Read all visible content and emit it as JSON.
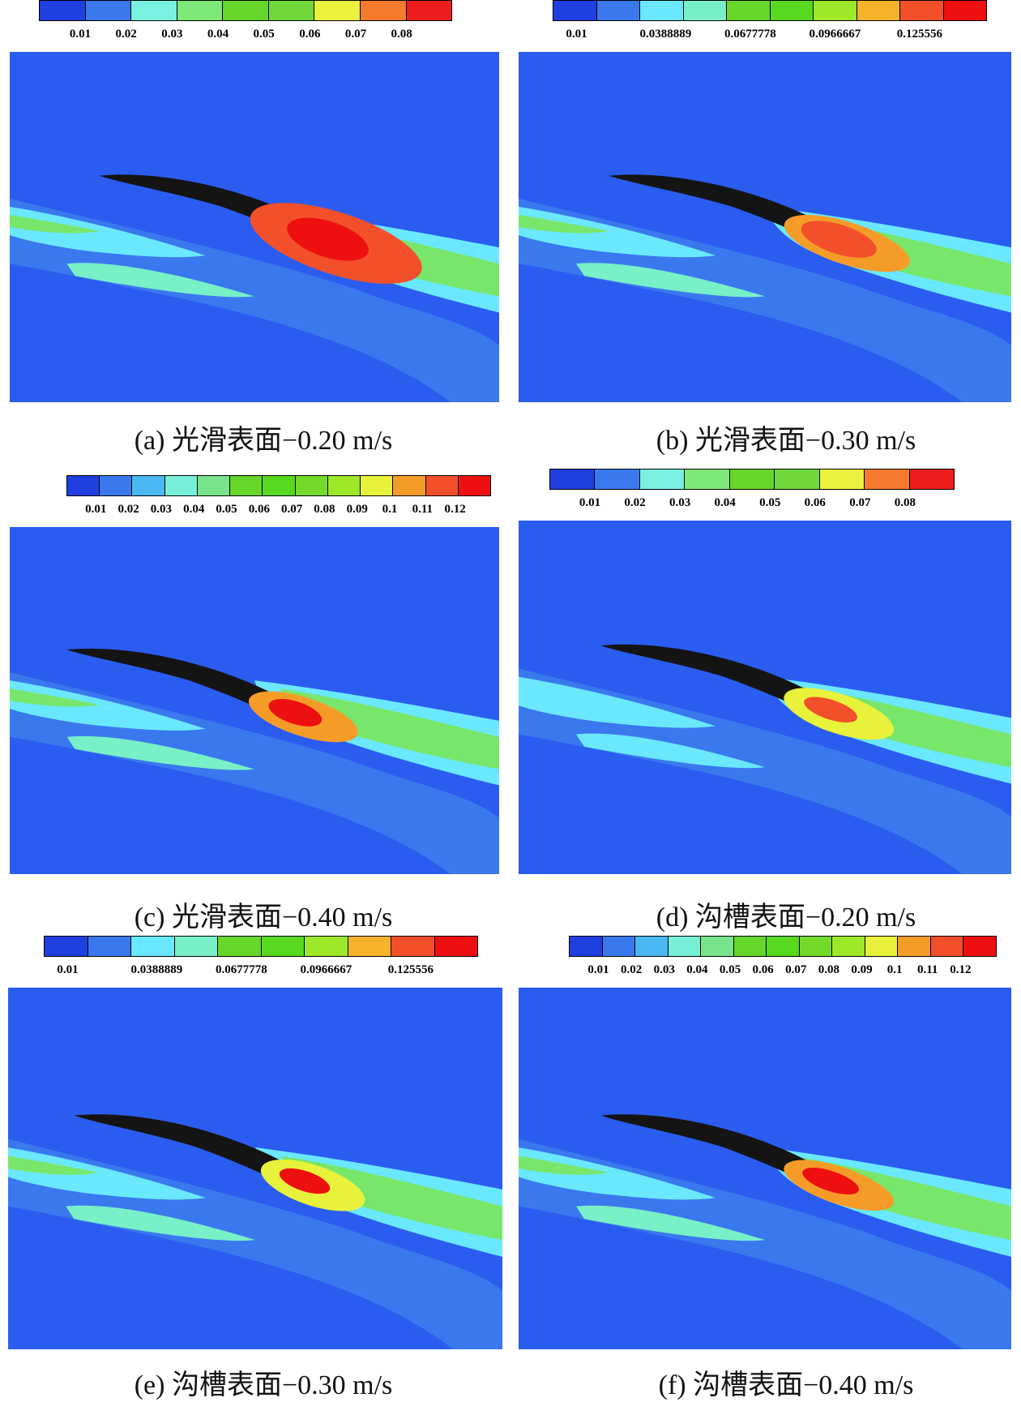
{
  "colors": {
    "c01": "#1f3fe0",
    "c02": "#3a78ee",
    "c03": "#6ae8ff",
    "c04": "#78f0c8",
    "c05": "#78e66a",
    "c06": "#66d62a",
    "c07": "#58d81e",
    "c08": "#9ee82a",
    "c09": "#e8f23a",
    "c10": "#f59c28",
    "c11": "#f2502a",
    "c12": "#ee1010",
    "background": "#2b5cf0",
    "blade": "#141414"
  },
  "panels": [
    {
      "id": "a",
      "caption": "(a) 光滑表面−0.20 m/s",
      "colorbar": {
        "colors": [
          "#1f3fe0",
          "#3a78ee",
          "#7af0e0",
          "#7ee878",
          "#66d62a",
          "#70d83a",
          "#eaf23e",
          "#f57a2c",
          "#ee1c1c"
        ],
        "labels": [
          "0.01",
          "0.02",
          "0.03",
          "0.04",
          "0.05",
          "0.06",
          "0.07",
          "0.08"
        ]
      }
    },
    {
      "id": "b",
      "caption": "(b) 光滑表面−0.30 m/s",
      "colorbar": {
        "colors": [
          "#1f3fe0",
          "#3a78ee",
          "#6ae8ff",
          "#78f0c8",
          "#66d62a",
          "#58d81e",
          "#9ee82a",
          "#f5b22a",
          "#f2502a",
          "#ee1010"
        ],
        "labels": [
          "0.01",
          "0.0388889",
          "0.0677778",
          "0.0966667",
          "0.125556"
        ]
      }
    },
    {
      "id": "c",
      "caption": "(c) 光滑表面−0.40 m/s",
      "colorbar": {
        "colors": [
          "#1f3fe0",
          "#3a78ee",
          "#4ab8f2",
          "#78f0d8",
          "#78e48c",
          "#66d62a",
          "#58d81e",
          "#74da2a",
          "#9ee82a",
          "#e8f23a",
          "#f59c28",
          "#f2502a",
          "#ee1010"
        ],
        "labels": [
          "0.01",
          "0.02",
          "0.03",
          "0.04",
          "0.05",
          "0.06",
          "0.07",
          "0.08",
          "0.09",
          "0.1",
          "0.11",
          "0.12"
        ]
      }
    },
    {
      "id": "d",
      "caption": "(d) 沟槽表面−0.20 m/s",
      "colorbar": {
        "colors": [
          "#1f3fe0",
          "#3a78ee",
          "#7af0e0",
          "#7ee878",
          "#66d62a",
          "#70d83a",
          "#eaf23e",
          "#f57a2c",
          "#ee1c1c"
        ],
        "labels": [
          "0.01",
          "0.02",
          "0.03",
          "0.04",
          "0.05",
          "0.06",
          "0.07",
          "0.08"
        ]
      }
    },
    {
      "id": "e",
      "caption": "(e) 沟槽表面−0.30 m/s",
      "colorbar": {
        "colors": [
          "#1f3fe0",
          "#3a78ee",
          "#6ae8ff",
          "#78f0c8",
          "#66d62a",
          "#58d81e",
          "#9ee82a",
          "#f5b22a",
          "#f2502a",
          "#ee1010"
        ],
        "labels": [
          "0.01",
          "0.0388889",
          "0.0677778",
          "0.0966667",
          "0.125556"
        ]
      }
    },
    {
      "id": "f",
      "caption": "(f) 沟槽表面−0.40 m/s",
      "colorbar": {
        "colors": [
          "#1f3fe0",
          "#3a78ee",
          "#4ab8f2",
          "#78f0d8",
          "#78e48c",
          "#66d62a",
          "#58d81e",
          "#74da2a",
          "#9ee82a",
          "#e8f23a",
          "#f59c28",
          "#f2502a",
          "#ee1010"
        ],
        "labels": [
          "0.01",
          "0.02",
          "0.03",
          "0.04",
          "0.05",
          "0.06",
          "0.07",
          "0.08",
          "0.09",
          "0.1",
          "0.11",
          "0.12"
        ]
      }
    }
  ]
}
